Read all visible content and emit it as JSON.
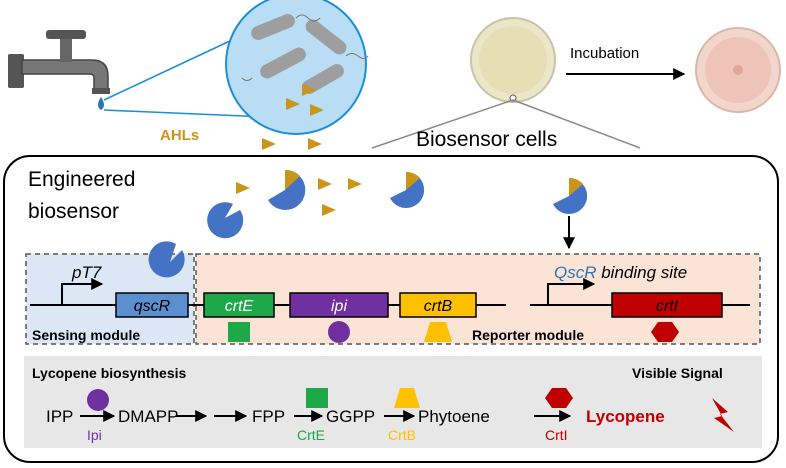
{
  "top": {
    "ahls_label": "AHLs",
    "incubation_label": "Incubation",
    "biosensor_cells_label": "Biosensor cells"
  },
  "engineered": {
    "title_line1": "Engineered",
    "title_line2": "biosensor"
  },
  "circuit": {
    "promoter_left": "pT7",
    "gene_qscr": "qscR",
    "gene_crte": "crtE",
    "gene_ipi": "ipi",
    "gene_crtb": "crtB",
    "gene_crti": "crtI",
    "binding_site_prefix": "QscR",
    "binding_site_suffix": " binding site",
    "sensing_module": "Sensing module",
    "reporter_module": "Reporter module"
  },
  "pathway": {
    "title": "Lycopene biosynthesis",
    "visible_signal": "Visible Signal",
    "ipp": "IPP",
    "ipi": "Ipi",
    "dmapp": "DMAPP",
    "fpp": "FPP",
    "crte": "CrtE",
    "ggpp": "GGPP",
    "crtb": "CrtB",
    "phytoene": "Phytoene",
    "crti": "CrtI",
    "lycopene": "Lycopene"
  },
  "colors": {
    "ahl": "#c9961a",
    "receptor": "#4472c4",
    "crte": "#1fa84a",
    "ipi": "#7030a0",
    "crtb": "#ffc000",
    "crti": "#c00000",
    "sensing_bg": "#dbe7f5",
    "reporter_bg": "#fbe4d5"
  }
}
